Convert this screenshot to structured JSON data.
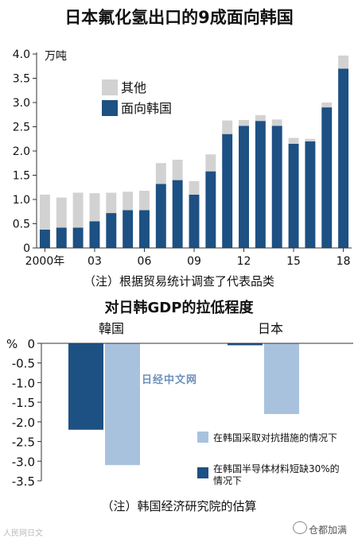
{
  "titles": {
    "top": "日本氟化氢出口的9成面向韩国",
    "bottom": "对日韩GDP的拉低程度"
  },
  "notes": {
    "top": "（注）根据贸易统计调查了代表品类",
    "bottom": "（注）韩国经济研究院的估算"
  },
  "watermarks": {
    "bottom_left": "人民网日文",
    "bottom_right": "仓都加满",
    "center": "日经中文网"
  },
  "colors": {
    "dark_blue": "#1d5083",
    "light_gray": "#d2d2d2",
    "light_blue": "#a8c2de"
  },
  "chart_data": [
    {
      "type": "bar",
      "stacked": true,
      "unit_label": "万吨",
      "x": [
        "2000年",
        "01",
        "02",
        "03",
        "04",
        "05",
        "06",
        "07",
        "08",
        "09",
        "10",
        "11",
        "12",
        "13",
        "14",
        "15",
        "16",
        "17",
        "18"
      ],
      "tick_labels": {
        "0": "2000年",
        "3": "03",
        "6": "06",
        "9": "09",
        "12": "12",
        "15": "15",
        "18": "18"
      },
      "series": [
        {
          "name": "面向韩国",
          "color": "#1d5083",
          "values": [
            0.38,
            0.42,
            0.42,
            0.55,
            0.72,
            0.78,
            0.78,
            1.32,
            1.4,
            1.1,
            1.58,
            2.35,
            2.52,
            2.62,
            2.52,
            2.15,
            2.2,
            2.9,
            3.7
          ]
        },
        {
          "name": "其他",
          "color": "#d2d2d2",
          "values": [
            0.72,
            0.62,
            0.72,
            0.58,
            0.42,
            0.38,
            0.4,
            0.43,
            0.42,
            0.28,
            0.35,
            0.28,
            0.12,
            0.12,
            0.13,
            0.12,
            0.05,
            0.1,
            0.27
          ]
        }
      ],
      "ylim": [
        0,
        4.0
      ],
      "yticks": [
        "4.0",
        "3.5",
        "3.0",
        "2.5",
        "2.0",
        "1.5",
        "1.0",
        "0.5",
        "0"
      ],
      "legend_position": "top-left"
    },
    {
      "type": "bar",
      "unit_label": "%",
      "categories": [
        "韓国",
        "日本"
      ],
      "series": [
        {
          "name": "在韩国半导体材料短缺30%的情况下",
          "color": "#1d5083",
          "values": [
            -2.2,
            -0.05
          ]
        },
        {
          "name": "在韩国采取对抗措施的情况下",
          "color": "#a8c2de",
          "values": [
            -3.1,
            -1.8
          ]
        }
      ],
      "ylim": [
        -3.5,
        0
      ],
      "yticks": [
        "0",
        "-0.5",
        "-1.0",
        "-1.5",
        "-2.0",
        "-2.5",
        "-3.0",
        "-3.5"
      ],
      "legend_position": "bottom-right"
    }
  ]
}
